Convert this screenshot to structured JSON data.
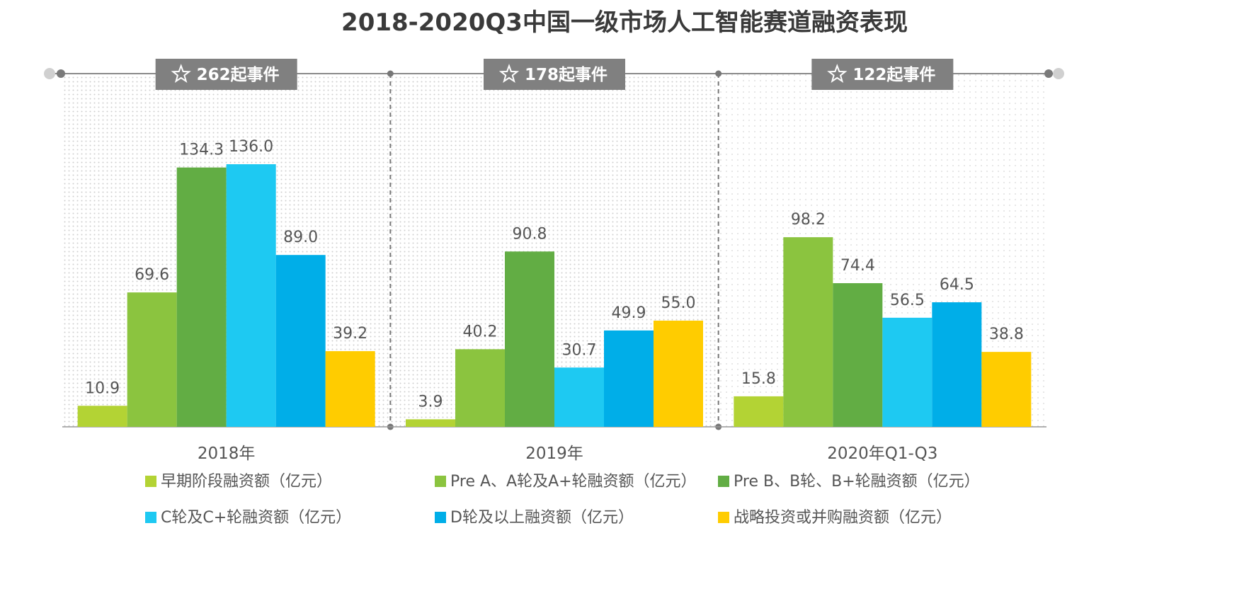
{
  "chart_data": {
    "type": "bar",
    "title": "2018-2020Q3中国一级市场人工智能赛道融资表现",
    "categories": [
      "2018年",
      "2019年",
      "2020年Q1-Q3"
    ],
    "event_labels": [
      "262起事件",
      "178起事件",
      "122起事件"
    ],
    "series": [
      {
        "name": "早期阶段融资额（亿元）",
        "values": [
          10.9,
          3.9,
          15.8
        ],
        "color": "#b3d334"
      },
      {
        "name": "Pre A、A轮及A+轮融资额（亿元）",
        "values": [
          69.6,
          40.2,
          98.2
        ],
        "color": "#8bc43f"
      },
      {
        "name": "Pre B、B轮、B+轮融资额（亿元）",
        "values": [
          134.3,
          90.8,
          74.4
        ],
        "color": "#62ad44"
      },
      {
        "name": "C轮及C+轮融资额（亿元）",
        "values": [
          136.0,
          30.7,
          56.5
        ],
        "color": "#1ec9f2"
      },
      {
        "name": "D轮及以上融资额（亿元）",
        "values": [
          89.0,
          49.9,
          64.5
        ],
        "color": "#00aee8"
      },
      {
        "name": "战略投资或并购融资额（亿元）",
        "values": [
          39.2,
          55.0,
          38.8
        ],
        "color": "#ffcc00"
      }
    ],
    "ylim": [
      0,
      150
    ],
    "legend_position": "bottom",
    "grid": false
  }
}
